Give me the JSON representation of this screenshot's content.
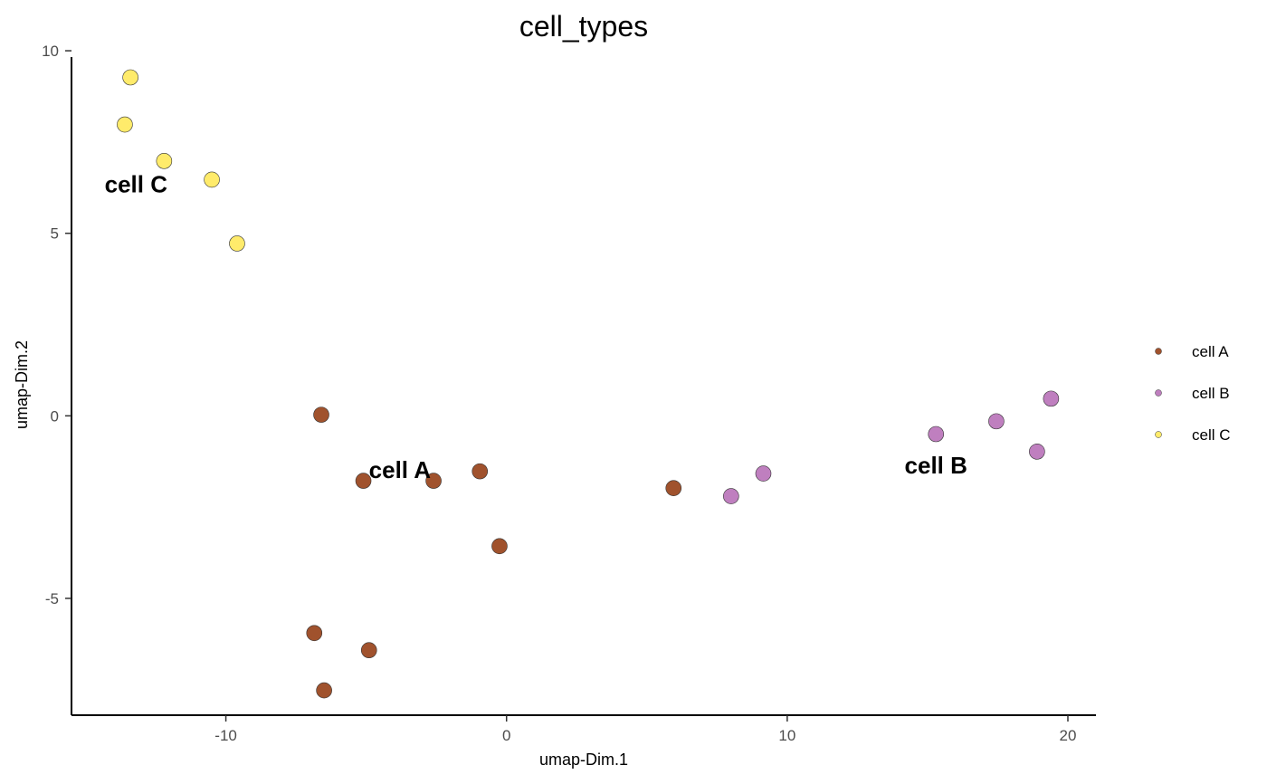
{
  "chart_data": {
    "type": "scatter",
    "title": "cell_types",
    "xlabel": "umap-Dim.1",
    "ylabel": "umap-Dim.2",
    "xlim": [
      -15.5,
      21
    ],
    "ylim": [
      -8.2,
      10.2
    ],
    "xticks": [
      -10,
      0,
      10,
      20
    ],
    "yticks": [
      -5,
      0,
      5,
      10
    ],
    "x_tick_labels": [
      "-10",
      "0",
      "10",
      "20"
    ],
    "y_tick_labels": [
      "-5",
      "0",
      "5",
      "10"
    ],
    "grid": false,
    "legend_position": "right",
    "series": [
      {
        "name": "cell A",
        "color": "#A0522D",
        "points": [
          [
            -6.6,
            0.03
          ],
          [
            -5.1,
            -1.78
          ],
          [
            -2.6,
            -1.78
          ],
          [
            -0.95,
            -1.52
          ],
          [
            -0.25,
            -3.57
          ],
          [
            5.95,
            -1.98
          ],
          [
            -6.85,
            -5.95
          ],
          [
            -4.9,
            -6.42
          ],
          [
            -6.5,
            -7.52
          ]
        ]
      },
      {
        "name": "cell B",
        "color": "#BF7FBF",
        "points": [
          [
            8.0,
            -2.2
          ],
          [
            9.15,
            -1.58
          ],
          [
            15.3,
            -0.5
          ],
          [
            17.45,
            -0.15
          ],
          [
            18.9,
            -0.98
          ],
          [
            19.4,
            0.47
          ]
        ]
      },
      {
        "name": "cell C",
        "color": "#FFEB6B",
        "points": [
          [
            -13.4,
            9.27
          ],
          [
            -13.6,
            7.98
          ],
          [
            -12.2,
            6.98
          ],
          [
            -10.5,
            6.47
          ],
          [
            -9.6,
            4.72
          ]
        ]
      }
    ],
    "annotations": [
      {
        "text": "cell A",
        "x": -3.8,
        "y": -1.48
      },
      {
        "text": "cell B",
        "x": 15.3,
        "y": -1.35
      },
      {
        "text": "cell C",
        "x": -13.2,
        "y": 6.35
      }
    ]
  }
}
